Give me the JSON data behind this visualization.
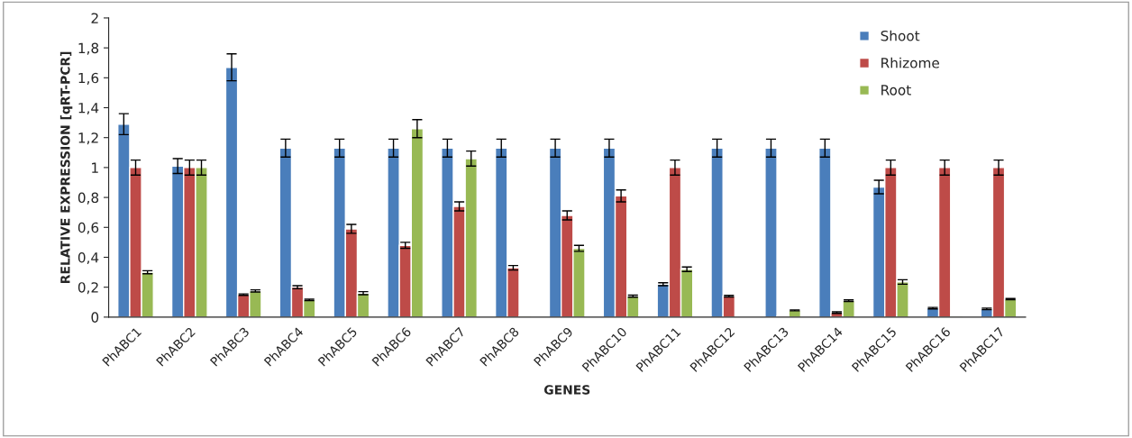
{
  "chart_data": {
    "type": "bar",
    "xlabel": "GENES",
    "ylabel": "RELATIVE EXPRESSION [qRT-PCR]",
    "categories": [
      "PhABC1",
      "PhABC2",
      "PhABC3",
      "PhABC4",
      "PhABC5",
      "PhABC6",
      "PhABC7",
      "PhABC8",
      "PhABC9",
      "PhABC10",
      "PhABC11",
      "PhABC12",
      "PhABC13",
      "PhABC14",
      "PhABC15",
      "PhABC16",
      "PhABC17"
    ],
    "series": [
      {
        "name": "Shoot",
        "color": "#4a7ebb",
        "values": [
          1.29,
          1.01,
          1.67,
          1.13,
          1.13,
          1.13,
          1.13,
          1.13,
          1.13,
          1.13,
          0.22,
          1.13,
          1.13,
          1.13,
          0.87,
          0.06,
          0.055
        ],
        "errors": [
          0.07,
          0.05,
          0.09,
          0.06,
          0.06,
          0.06,
          0.06,
          0.06,
          0.06,
          0.06,
          0.01,
          0.06,
          0.06,
          0.06,
          0.045,
          0.005,
          0.005
        ]
      },
      {
        "name": "Rhizome",
        "color": "#be4b48",
        "values": [
          1.0,
          1.0,
          0.15,
          0.2,
          0.59,
          0.48,
          0.74,
          0.33,
          0.68,
          0.81,
          1.0,
          0.14,
          0.005,
          0.03,
          1.0,
          1.0,
          1.0
        ],
        "errors": [
          0.05,
          0.05,
          0.005,
          0.01,
          0.03,
          0.02,
          0.03,
          0.015,
          0.03,
          0.04,
          0.05,
          0.005,
          null,
          0.005,
          0.05,
          0.05,
          0.05
        ]
      },
      {
        "name": "Root",
        "color": "#98b954",
        "values": [
          0.3,
          1.0,
          0.175,
          0.115,
          0.16,
          1.26,
          1.06,
          0.005,
          0.46,
          0.14,
          0.32,
          null,
          0.045,
          0.11,
          0.235,
          0.005,
          0.12
        ],
        "errors": [
          0.01,
          0.05,
          0.007,
          0.005,
          0.01,
          0.06,
          0.05,
          null,
          0.02,
          0.007,
          0.015,
          null,
          0.003,
          0.005,
          0.015,
          null,
          0.004
        ]
      }
    ],
    "ylim": [
      0,
      2
    ],
    "yticks": [
      0,
      {
        "value": 0.2,
        "label": "0,2"
      },
      {
        "value": 0.4,
        "label": "0,4"
      },
      {
        "value": 0.6,
        "label": "0,6"
      },
      {
        "value": 0.8,
        "label": "0,8"
      },
      1,
      {
        "value": 1.2,
        "label": "1,2"
      },
      {
        "value": 1.4,
        "label": "1,4"
      },
      {
        "value": 1.6,
        "label": "1,6"
      },
      {
        "value": 1.8,
        "label": "1,8"
      },
      2
    ],
    "grid": false,
    "legend": "top right"
  }
}
